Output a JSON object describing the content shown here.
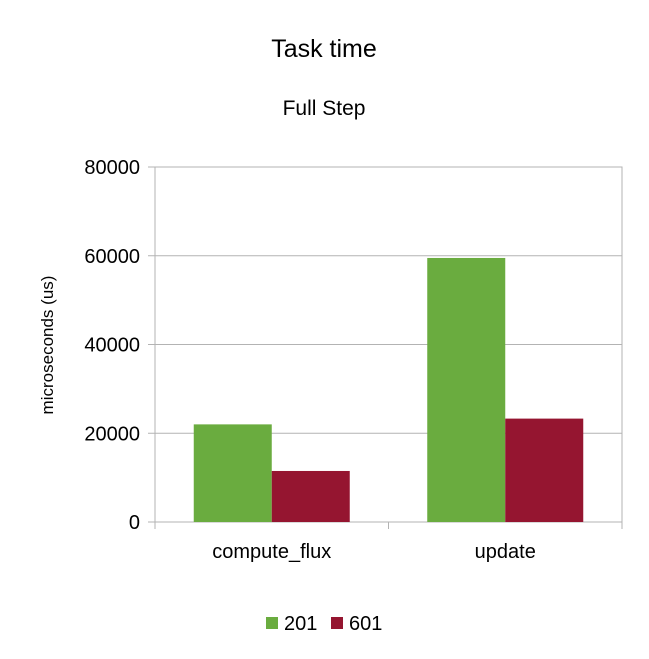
{
  "chart_data": {
    "type": "bar",
    "title": "Task time",
    "subtitle": "Full Step",
    "xlabel": "",
    "ylabel": "microseconds (us)",
    "categories": [
      "compute_flux",
      "update"
    ],
    "series": [
      {
        "name": "201",
        "color": "#6aac3f",
        "values": [
          22000,
          59500
        ]
      },
      {
        "name": "601",
        "color": "#951530",
        "values": [
          11500,
          23300
        ]
      }
    ],
    "ylim": [
      0,
      80000
    ],
    "yticks": [
      "0",
      "20000",
      "40000",
      "60000",
      "80000"
    ],
    "yticks_values": [
      0,
      20000,
      40000,
      60000,
      80000
    ],
    "grid": true,
    "legend_position": "bottom"
  }
}
